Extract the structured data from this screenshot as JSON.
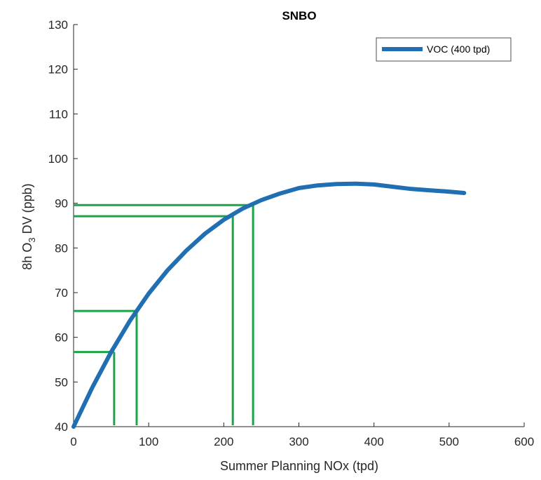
{
  "chart_data": {
    "type": "line",
    "title": "SNBO",
    "xlabel": "Summer Planning NOx (tpd)",
    "ylabel_parts": [
      "8h O",
      "3",
      " DV (ppb)"
    ],
    "xlim": [
      0,
      600
    ],
    "ylim": [
      40,
      130
    ],
    "xticks": [
      0,
      100,
      200,
      300,
      400,
      500,
      600
    ],
    "yticks": [
      40,
      50,
      60,
      70,
      80,
      90,
      100,
      110,
      120,
      130
    ],
    "legend_position": "top-right",
    "grid": false,
    "series": [
      {
        "name": "VOC (400 tpd)",
        "color": "#1f6fb2",
        "x": [
          0,
          25,
          50,
          75,
          100,
          125,
          150,
          175,
          200,
          225,
          250,
          275,
          300,
          325,
          350,
          375,
          400,
          425,
          450,
          475,
          500,
          520
        ],
        "y": [
          40.0,
          48.8,
          56.7,
          63.7,
          69.8,
          75.0,
          79.4,
          83.2,
          86.3,
          88.8,
          90.7,
          92.2,
          93.4,
          94.0,
          94.3,
          94.4,
          94.2,
          93.7,
          93.2,
          92.9,
          92.6,
          92.3
        ]
      }
    ],
    "guide_lines": {
      "color": "#1aa648",
      "lines": [
        {
          "x": 54,
          "y": 56.7
        },
        {
          "x": 84,
          "y": 65.9
        },
        {
          "x": 212,
          "y": 87.1
        },
        {
          "x": 239,
          "y": 89.6
        }
      ]
    }
  }
}
